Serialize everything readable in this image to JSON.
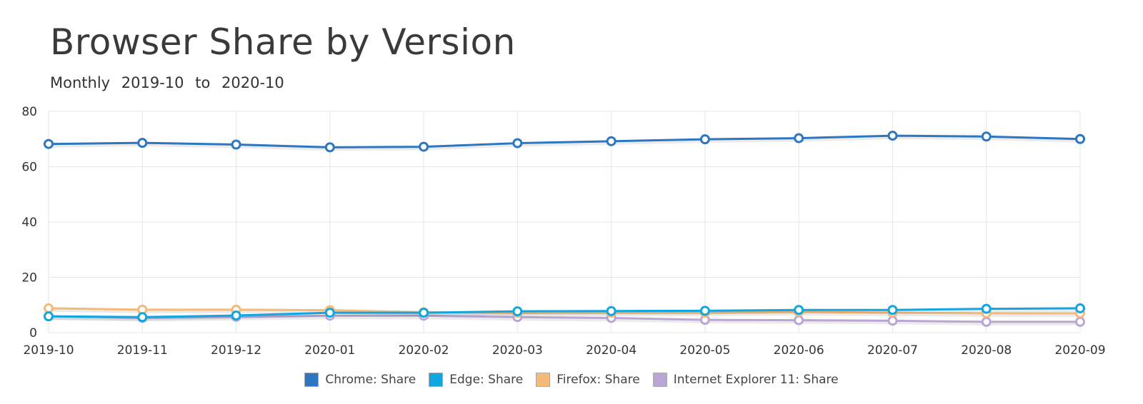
{
  "header": {
    "title": "Browser Share by Version",
    "subtitle_frequency": "Monthly",
    "subtitle_from": "2019-10",
    "subtitle_to_word": "to",
    "subtitle_to": "2020-10"
  },
  "chart_data": {
    "type": "line",
    "title": "Browser Share by Version",
    "subtitle": "Monthly 2019-10 to 2020-10",
    "xlabel": "",
    "ylabel": "",
    "x": [
      "2019-10",
      "2019-11",
      "2019-12",
      "2020-01",
      "2020-02",
      "2020-03",
      "2020-04",
      "2020-05",
      "2020-06",
      "2020-07",
      "2020-08",
      "2020-09"
    ],
    "ylim": [
      0,
      80
    ],
    "yticks": [
      0,
      20,
      40,
      60,
      80
    ],
    "grid": true,
    "legend_position": "bottom",
    "series": [
      {
        "name": "Chrome: Share",
        "color": "#2c76c2",
        "values": [
          68.2,
          68.6,
          68.0,
          67.0,
          67.2,
          68.5,
          69.2,
          69.9,
          70.3,
          71.2,
          70.9,
          70.0
        ]
      },
      {
        "name": "Edge: Share",
        "color": "#12a6e0",
        "values": [
          5.9,
          5.6,
          6.2,
          7.2,
          7.2,
          7.7,
          7.8,
          7.9,
          8.2,
          8.2,
          8.6,
          8.8
        ]
      },
      {
        "name": "Firefox: Share",
        "color": "#f5b978",
        "values": [
          8.8,
          8.3,
          8.3,
          8.1,
          7.4,
          7.1,
          7.2,
          7.2,
          7.5,
          7.2,
          7.0,
          7.0
        ]
      },
      {
        "name": "Internet Explorer 11: Share",
        "color": "#b9a6d3",
        "values": [
          5.9,
          5.3,
          5.7,
          6.1,
          6.1,
          5.6,
          5.3,
          4.6,
          4.5,
          4.3,
          3.9,
          3.9
        ]
      }
    ]
  }
}
